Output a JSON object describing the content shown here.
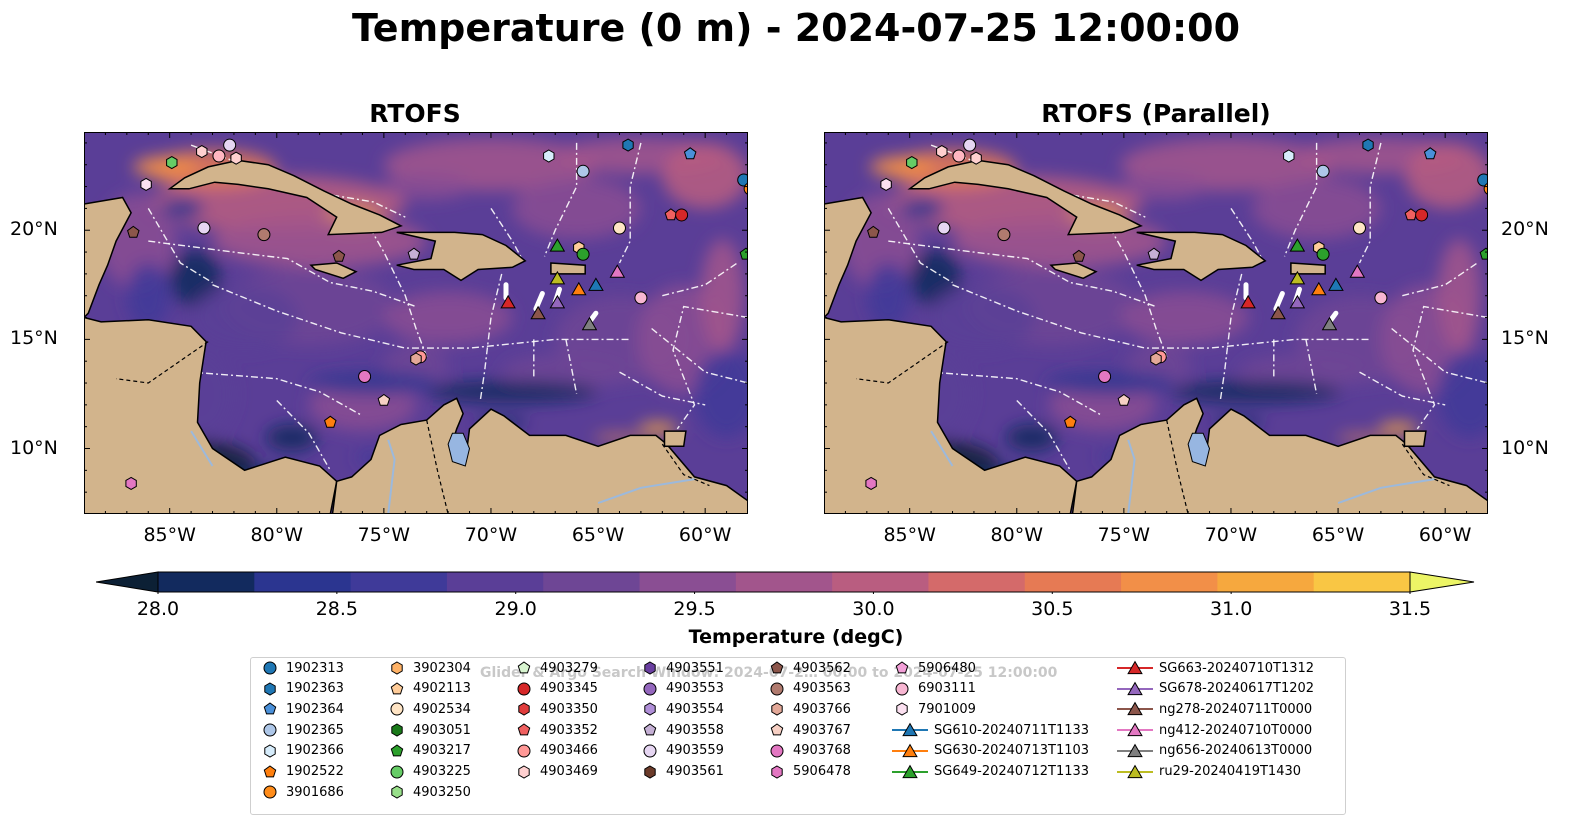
{
  "figure": {
    "suptitle": "Temperature (0 m) - 2024-07-25 12:00:00",
    "watermark": "Glider & Argo Search Window: 2024-07-2… 00:00 to 2024-07-25 12:00:00"
  },
  "panels": [
    {
      "title": "RTOFS"
    },
    {
      "title": "RTOFS (Parallel)"
    }
  ],
  "map": {
    "lon_range": [
      -89,
      -58
    ],
    "lat_range": [
      7,
      24.5
    ],
    "x_ticks": [
      "85°W",
      "80°W",
      "75°W",
      "70°W",
      "65°W",
      "60°W"
    ],
    "y_ticks": [
      "20°N",
      "15°N",
      "10°N"
    ]
  },
  "colorbar": {
    "label": "Temperature (degC)",
    "ticks": [
      "28.0",
      "28.5",
      "29.0",
      "29.5",
      "30.0",
      "30.5",
      "31.0",
      "31.5"
    ],
    "range": [
      28.0,
      31.5
    ],
    "colors": [
      "#0c2035",
      "#122a5e",
      "#2b3590",
      "#3f3a99",
      "#5a3e97",
      "#6e4695",
      "#8a4e93",
      "#a2558c",
      "#b95d80",
      "#d46a6a",
      "#e67a54",
      "#f28f48",
      "#f6a83e",
      "#f9c644",
      "#ecf566"
    ]
  },
  "colors": {
    "land": "#d2b48c",
    "water_lake": "#97b6e1"
  },
  "legend": {
    "columns": [
      [
        {
          "label": "1902313",
          "shape": "circle",
          "color": "#1f77b4"
        },
        {
          "label": "1902363",
          "shape": "hexagon",
          "color": "#1f77b4"
        },
        {
          "label": "1902364",
          "shape": "pentagon",
          "color": "#4a90d9"
        },
        {
          "label": "1902365",
          "shape": "circle",
          "color": "#aec7e8"
        },
        {
          "label": "1902366",
          "shape": "hexagon",
          "color": "#d6ecfb"
        },
        {
          "label": "1902522",
          "shape": "pentagon",
          "color": "#ff7f0e"
        },
        {
          "label": "3901686",
          "shape": "circle",
          "color": "#ff8c1a"
        }
      ],
      [
        {
          "label": "3902304",
          "shape": "hexagon",
          "color": "#ffb266"
        },
        {
          "label": "4902113",
          "shape": "pentagon",
          "color": "#ffcc99"
        },
        {
          "label": "4902534",
          "shape": "circle",
          "color": "#ffe4c4"
        },
        {
          "label": "4903051",
          "shape": "hexagon",
          "color": "#1a7a1a"
        },
        {
          "label": "4903217",
          "shape": "pentagon",
          "color": "#2ca02c"
        },
        {
          "label": "4903225",
          "shape": "circle",
          "color": "#66cc66"
        },
        {
          "label": "4903250",
          "shape": "hexagon",
          "color": "#98df8a"
        }
      ],
      [
        {
          "label": "4903279",
          "shape": "pentagon",
          "color": "#d8f5d0"
        },
        {
          "label": "4903345",
          "shape": "circle",
          "color": "#d62728"
        },
        {
          "label": "4903350",
          "shape": "hexagon",
          "color": "#e03c3c"
        },
        {
          "label": "4903352",
          "shape": "pentagon",
          "color": "#f06060"
        },
        {
          "label": "4903466",
          "shape": "circle",
          "color": "#ff9896"
        },
        {
          "label": "4903469",
          "shape": "hexagon",
          "color": "#ffd0d0"
        }
      ],
      [
        {
          "label": "4903551",
          "shape": "hexagon",
          "color": "#6a3fa0"
        },
        {
          "label": "4903553",
          "shape": "circle",
          "color": "#9467bd"
        },
        {
          "label": "4903554",
          "shape": "hexagon",
          "color": "#b08fd8"
        },
        {
          "label": "4903558",
          "shape": "pentagon",
          "color": "#c5b0d5"
        },
        {
          "label": "4903559",
          "shape": "circle",
          "color": "#e6d6f2"
        },
        {
          "label": "4903561",
          "shape": "hexagon",
          "color": "#6b3b2a"
        }
      ],
      [
        {
          "label": "4903562",
          "shape": "pentagon",
          "color": "#8c564b"
        },
        {
          "label": "4903563",
          "shape": "circle",
          "color": "#b07a6e"
        },
        {
          "label": "4903766",
          "shape": "hexagon",
          "color": "#e3a898"
        },
        {
          "label": "4903767",
          "shape": "pentagon",
          "color": "#f7d0c4"
        },
        {
          "label": "4903768",
          "shape": "circle",
          "color": "#e377c2"
        },
        {
          "label": "5906478",
          "shape": "hexagon",
          "color": "#e377c2"
        }
      ],
      [
        {
          "label": "5906480",
          "shape": "pentagon",
          "color": "#f3a0d8"
        },
        {
          "label": "6903111",
          "shape": "circle",
          "color": "#f7b6d2"
        },
        {
          "label": "7901009",
          "shape": "hexagon",
          "color": "#fbe0f0"
        },
        {
          "label": "SG610-20240711T1133",
          "shape": "triangle",
          "color": "#1f77b4"
        },
        {
          "label": "SG630-20240713T1103",
          "shape": "triangle",
          "color": "#ff7f0e"
        },
        {
          "label": "SG649-20240712T1133",
          "shape": "triangle",
          "color": "#2ca02c"
        }
      ],
      [
        {
          "label": "SG663-20240710T1312",
          "shape": "triangle",
          "color": "#d62728"
        },
        {
          "label": "SG678-20240617T1202",
          "shape": "triangle",
          "color": "#9467bd"
        },
        {
          "label": "ng278-20240711T0000",
          "shape": "triangle",
          "color": "#8c564b"
        },
        {
          "label": "ng412-20240710T0000",
          "shape": "triangle",
          "color": "#e377c2"
        },
        {
          "label": "ng656-20240613T0000",
          "shape": "triangle",
          "color": "#7f7f7f"
        },
        {
          "label": "ru29-20240419T1430",
          "shape": "triangle",
          "color": "#bcbd22"
        }
      ]
    ]
  },
  "floats": [
    {
      "lon": -83.5,
      "lat": 23.6,
      "shape": "hexagon",
      "color": "#ffd0d0"
    },
    {
      "lon": -82.2,
      "lat": 23.9,
      "shape": "circle",
      "color": "#e6d6f2"
    },
    {
      "lon": -82.7,
      "lat": 23.4,
      "shape": "circle",
      "color": "#ffb6c1"
    },
    {
      "lon": -81.9,
      "lat": 23.3,
      "shape": "hexagon",
      "color": "#ffd0d0"
    },
    {
      "lon": -84.9,
      "lat": 23.1,
      "shape": "hexagon",
      "color": "#66cc66"
    },
    {
      "lon": -86.1,
      "lat": 22.1,
      "shape": "hexagon",
      "color": "#fbe0f0"
    },
    {
      "lon": -83.4,
      "lat": 20.1,
      "shape": "circle",
      "color": "#e6d6f2"
    },
    {
      "lon": -80.6,
      "lat": 19.8,
      "shape": "circle",
      "color": "#b07a6e"
    },
    {
      "lon": -86.7,
      "lat": 19.9,
      "shape": "pentagon",
      "color": "#8c564b"
    },
    {
      "lon": -77.1,
      "lat": 18.8,
      "shape": "pentagon",
      "color": "#8c564b"
    },
    {
      "lon": -73.6,
      "lat": 18.9,
      "shape": "pentagon",
      "color": "#c5b0d5"
    },
    {
      "lon": -64.0,
      "lat": 20.1,
      "shape": "circle",
      "color": "#ffe4c4"
    },
    {
      "lon": -61.6,
      "lat": 20.7,
      "shape": "pentagon",
      "color": "#f06060"
    },
    {
      "lon": -61.1,
      "lat": 20.7,
      "shape": "circle",
      "color": "#d62728"
    },
    {
      "lon": -65.7,
      "lat": 22.7,
      "shape": "circle",
      "color": "#aec7e8"
    },
    {
      "lon": -67.3,
      "lat": 23.4,
      "shape": "hexagon",
      "color": "#d6ecfb"
    },
    {
      "lon": -63.6,
      "lat": 23.9,
      "shape": "hexagon",
      "color": "#1f77b4"
    },
    {
      "lon": -60.7,
      "lat": 23.5,
      "shape": "pentagon",
      "color": "#4a90d9"
    },
    {
      "lon": -58.2,
      "lat": 22.3,
      "shape": "circle",
      "color": "#1f77b4"
    },
    {
      "lon": -57.9,
      "lat": 21.9,
      "shape": "circle",
      "color": "#ff8c1a"
    },
    {
      "lon": -58.1,
      "lat": 18.9,
      "shape": "pentagon",
      "color": "#2ca02c"
    },
    {
      "lon": -65.9,
      "lat": 19.2,
      "shape": "hexagon",
      "color": "#ffcc99"
    },
    {
      "lon": -65.7,
      "lat": 18.9,
      "shape": "circle",
      "color": "#2ca02c"
    },
    {
      "lon": -63.0,
      "lat": 16.9,
      "shape": "circle",
      "color": "#f7b6d2"
    },
    {
      "lon": -73.3,
      "lat": 14.2,
      "shape": "circle",
      "color": "#ff9896"
    },
    {
      "lon": -73.5,
      "lat": 14.1,
      "shape": "hexagon",
      "color": "#e3a898"
    },
    {
      "lon": -75.9,
      "lat": 13.3,
      "shape": "circle",
      "color": "#e377c2"
    },
    {
      "lon": -75.0,
      "lat": 12.2,
      "shape": "pentagon",
      "color": "#f7d0c4"
    },
    {
      "lon": -77.5,
      "lat": 11.2,
      "shape": "pentagon",
      "color": "#ff7f0e"
    },
    {
      "lon": -86.8,
      "lat": 8.4,
      "shape": "hexagon",
      "color": "#e377c2"
    }
  ],
  "gliders": [
    {
      "lon": -66.9,
      "lat": 19.3,
      "color": "#2ca02c"
    },
    {
      "lon": -66.9,
      "lat": 17.8,
      "color": "#bcbd22"
    },
    {
      "lon": -65.9,
      "lat": 17.3,
      "color": "#ff7f0e"
    },
    {
      "lon": -65.1,
      "lat": 17.5,
      "color": "#1f77b4"
    },
    {
      "lon": -64.1,
      "lat": 18.1,
      "color": "#e377c2"
    },
    {
      "lon": -69.2,
      "lat": 16.7,
      "color": "#d62728"
    },
    {
      "lon": -67.8,
      "lat": 16.2,
      "color": "#8c564b"
    },
    {
      "lon": -66.9,
      "lat": 16.7,
      "color": "#9467bd"
    },
    {
      "lon": -65.4,
      "lat": 15.7,
      "color": "#7f7f7f"
    }
  ]
}
